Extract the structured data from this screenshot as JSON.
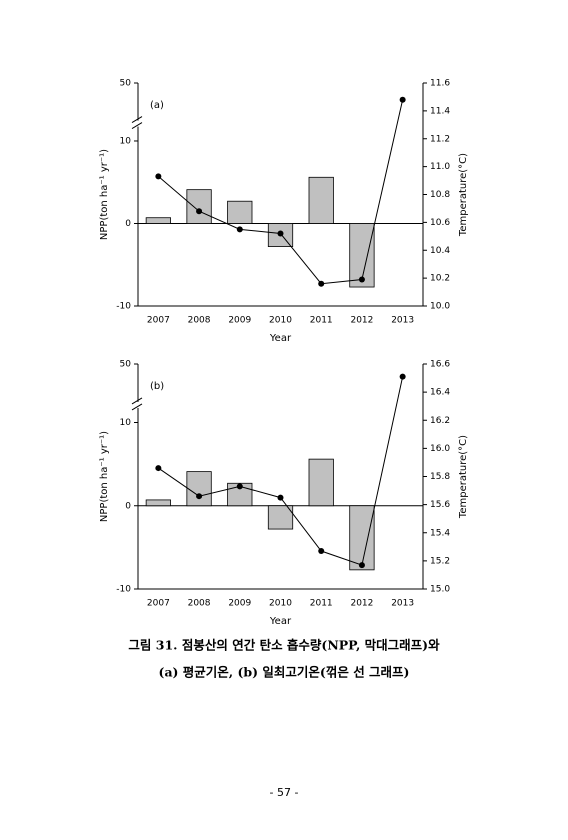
{
  "chart_data": [
    {
      "type": "combo",
      "label": "(a)",
      "x_label": "Year",
      "y_label": "NPP(ton ha⁻¹ yr⁻¹)",
      "y2_label": "Temperature(°C)",
      "categories": [
        "2007",
        "2008",
        "2009",
        "2010",
        "2011",
        "2012",
        "2013"
      ],
      "series": [
        {
          "type": "bar",
          "color": "#c0c0c0",
          "values": [
            0.7,
            4.1,
            2.7,
            -2.8,
            5.6,
            -7.7,
            null
          ]
        },
        {
          "type": "line",
          "axis": "y2",
          "color": "#000000",
          "values": [
            10.93,
            10.68,
            10.55,
            10.52,
            10.16,
            10.19,
            11.48
          ]
        }
      ],
      "ylim": [
        -10,
        50
      ],
      "ybreak": [
        10,
        50
      ],
      "yticks": [
        -10,
        0,
        10,
        50
      ],
      "y2lim": [
        10.0,
        11.6
      ],
      "y2ticks": [
        {
          "value": 10,
          "label": "10.0"
        },
        10.2,
        10.4,
        10.6,
        10.8,
        {
          "value": 11,
          "label": "11.0"
        },
        11.2,
        11.4,
        11.6
      ]
    },
    {
      "type": "combo",
      "label": "(b)",
      "x_label": "Year",
      "y_label": "NPP(ton ha⁻¹ yr⁻¹)",
      "y2_label": "Temperature(°C)",
      "categories": [
        "2007",
        "2008",
        "2009",
        "2010",
        "2011",
        "2012",
        "2013"
      ],
      "series": [
        {
          "type": "bar",
          "color": "#c0c0c0",
          "values": [
            0.7,
            4.1,
            2.7,
            -2.8,
            5.6,
            -7.7,
            null
          ]
        },
        {
          "type": "line",
          "axis": "y2",
          "color": "#000000",
          "values": [
            15.86,
            15.66,
            15.73,
            15.65,
            15.27,
            15.17,
            16.51
          ]
        }
      ],
      "ylim": [
        -10,
        50
      ],
      "ybreak": [
        10,
        50
      ],
      "yticks": [
        -10,
        0,
        10,
        50
      ],
      "y2lim": [
        15.0,
        16.6
      ],
      "y2ticks": [
        {
          "value": 15,
          "label": "15.0"
        },
        15.2,
        15.4,
        15.6,
        15.8,
        {
          "value": 16,
          "label": "16.0"
        },
        16.2,
        16.4,
        16.6
      ]
    }
  ],
  "caption": [
    "그림 31. 점봉산의 연간 탄소 흡수량(NPP, 막대그래프)와",
    "(a) 평균기온, (b) 일최고기온(꺾은 선 그래프)"
  ],
  "page_number": "- 57 -"
}
